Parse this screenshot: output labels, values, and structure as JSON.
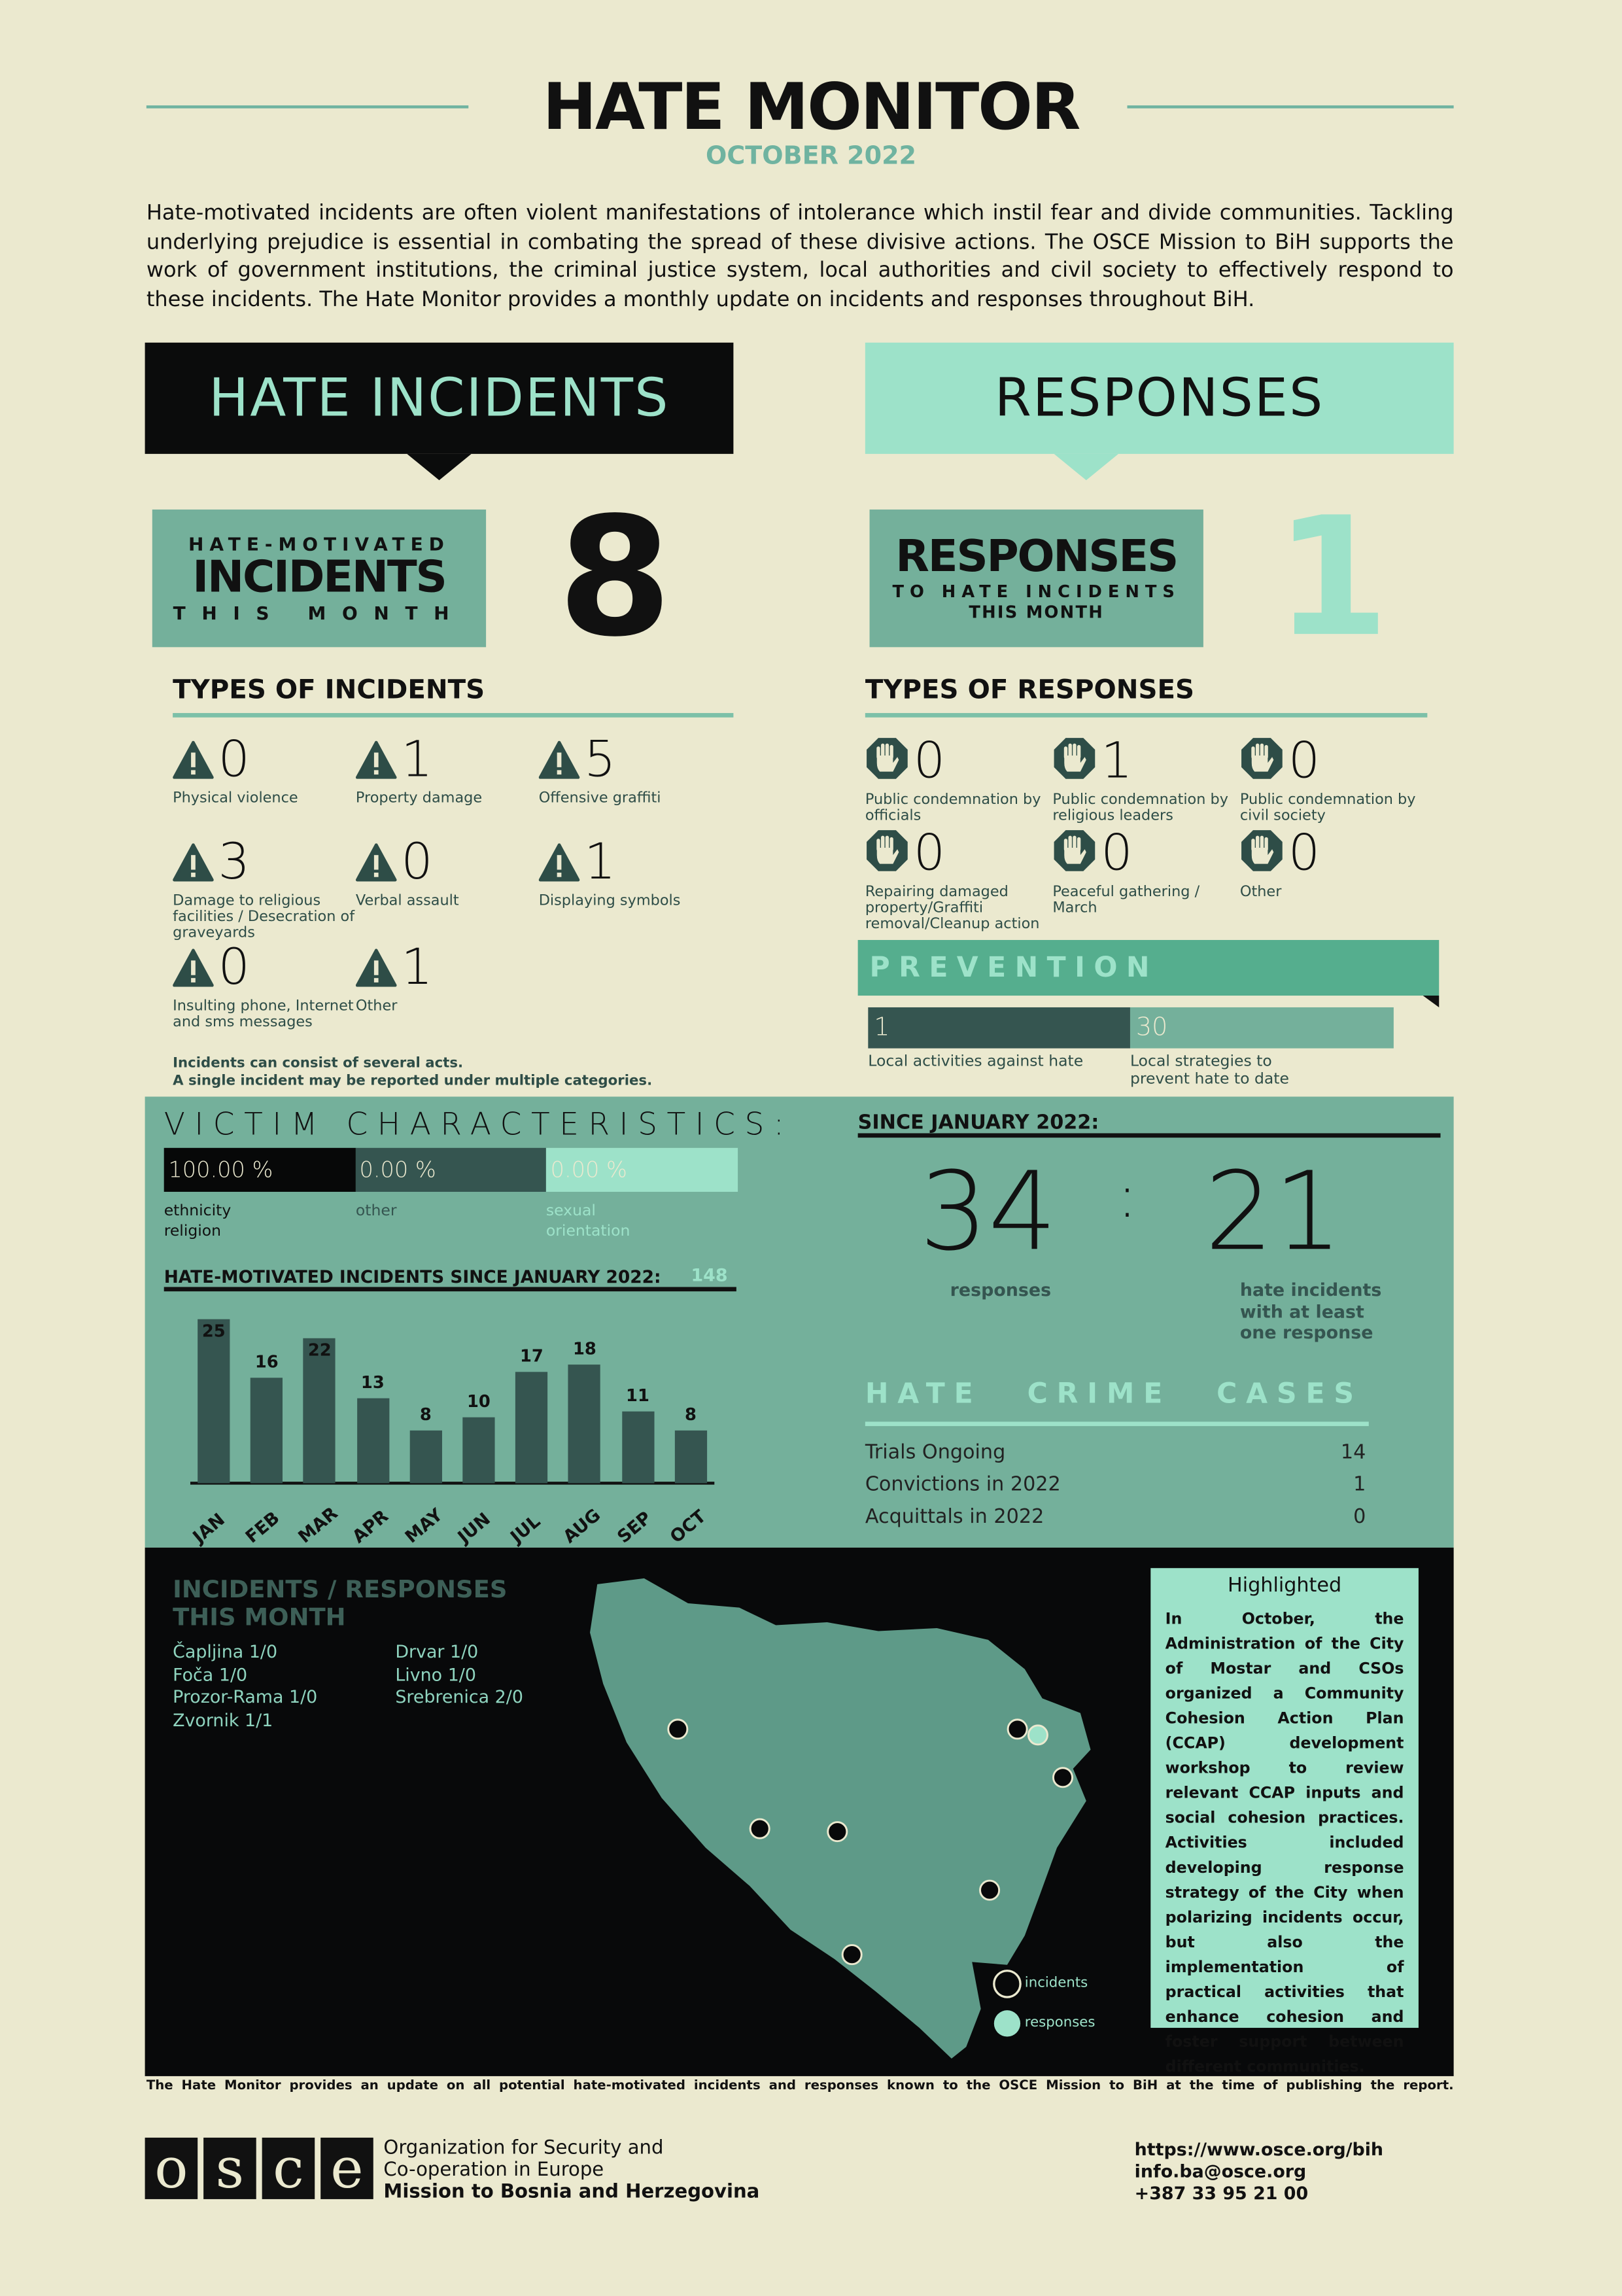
{
  "header": {
    "title": "HATE MONITOR",
    "subtitle": "OCTOBER 2022",
    "intro": "Hate-motivated incidents are often violent manifestations of intolerance which instil fear and divide communities. Tackling underlying prejudice is essential in combating the spread of these divisive actions. The OSCE Mission to BiH supports the work of government institutions, the criminal justice system, local authorities and civil society to effectively respond to these incidents. The Hate Monitor provides a monthly update on incidents and responses throughout BiH."
  },
  "incidents": {
    "banner": "HATE INCIDENTS",
    "label_top": "HATE-MOTIVATED",
    "label_main": "INCIDENTS",
    "label_bottom": "THIS MONTH",
    "count": "8",
    "types_heading": "TYPES OF INCIDENTS",
    "types": [
      {
        "value": "0",
        "label": "Physical violence"
      },
      {
        "value": "1",
        "label": "Property damage"
      },
      {
        "value": "5",
        "label": "Offensive graffiti"
      },
      {
        "value": "3",
        "label": "Damage to religious facilities / Desecration of graveyards"
      },
      {
        "value": "0",
        "label": "Verbal assault"
      },
      {
        "value": "1",
        "label": "Displaying symbols"
      },
      {
        "value": "0",
        "label": "Insulting phone, Internet and sms messages"
      },
      {
        "value": "1",
        "label": "Other"
      }
    ],
    "note1": "Incidents can consist of several acts.",
    "note2": "A single incident may be reported under multiple categories."
  },
  "responses": {
    "banner": "RESPONSES",
    "label_main": "RESPONSES",
    "label_mid": "TO HATE INCIDENTS",
    "label_bottom": "THIS MONTH",
    "count": "1",
    "types_heading": "TYPES OF RESPONSES",
    "types": [
      {
        "value": "0",
        "label": "Public condemnation by officials"
      },
      {
        "value": "1",
        "label": "Public condemnation by religious leaders"
      },
      {
        "value": "0",
        "label": "Public condemnation by civil society"
      },
      {
        "value": "0",
        "label": "Repairing damaged property/Graffiti removal/Cleanup action"
      },
      {
        "value": "0",
        "label": "Peaceful gathering / March"
      },
      {
        "value": "0",
        "label": "Other"
      }
    ]
  },
  "prevention": {
    "title": "PREVENTION",
    "activities_value": "1",
    "activities_label": "Local activities against hate",
    "strategies_value": "30",
    "strategies_label": "Local strategies to prevent hate to date"
  },
  "victims": {
    "title": "VICTIM CHARACTERISTICS:",
    "items": [
      {
        "value": "100.00 %",
        "label": "ethnicity religion"
      },
      {
        "value": "0.00 %",
        "label": "other"
      },
      {
        "value": "0.00 %",
        "label": "sexual orientation"
      }
    ]
  },
  "chart_data": {
    "type": "bar",
    "title": "HATE-MOTIVATED INCIDENTS SINCE JANUARY 2022:",
    "total": "148",
    "categories": [
      "JAN",
      "FEB",
      "MAR",
      "APR",
      "MAY",
      "JUN",
      "JUL",
      "AUG",
      "SEP",
      "OCT"
    ],
    "values": [
      25,
      16,
      22,
      13,
      8,
      10,
      17,
      18,
      11,
      8
    ],
    "ylim": [
      0,
      25
    ],
    "grid": false
  },
  "since": {
    "heading": "SINCE JANUARY 2022:",
    "responses": "34",
    "separator": ":",
    "incidents": "21",
    "responses_label": "responses",
    "incidents_label": "hate incidents with at least one response"
  },
  "hate_crime": {
    "title": "HATE CRIME CASES",
    "rows": [
      {
        "label": "Trials Ongoing",
        "value": "14"
      },
      {
        "label": "Convictions in 2022",
        "value": "1"
      },
      {
        "label": "Acquittals in 2022",
        "value": "0"
      }
    ]
  },
  "map": {
    "title1": "INCIDENTS / RESPONSES",
    "title2": "THIS MONTH",
    "cities": [
      {
        "name": "Čapljina",
        "value": "1/0"
      },
      {
        "name": "Foča",
        "value": "1/0"
      },
      {
        "name": "Prozor-Rama",
        "value": "1/0"
      },
      {
        "name": "Zvornik",
        "value": "1/1"
      },
      {
        "name": "Drvar",
        "value": "1/0"
      },
      {
        "name": "Livno",
        "value": "1/0"
      },
      {
        "name": "Srebrenica",
        "value": "2/0"
      }
    ],
    "legend_incidents": "incidents",
    "legend_responses": "responses"
  },
  "highlight": {
    "title": "Highlighted",
    "text": "In October, the Administration of the City of Mostar and CSOs organized a Community Cohesion Action Plan (CCAP) development workshop to review relevant CCAP inputs and social cohesion practices. Activities included developing response strategy of the City when polarizing incidents occur, but also the implementation of practical activities that enhance cohesion and foster support between different communities."
  },
  "footer": {
    "note": "The Hate Monitor provides an update on all potential hate-motivated incidents and responses known to the OSCE Mission to BiH at the time of publishing the report.",
    "logo": "OSCE",
    "org1": "Organization for Security and",
    "org2": "Co-operation in Europe",
    "org3": "Mission to Bosnia and Herzegovina",
    "url": "https://www.osce.org/bih",
    "email": "info.ba@osce.org",
    "phone": "+387 33 95 21 00"
  },
  "colors": {
    "background": "#ebe9cf",
    "teal": "#74b09b",
    "mint": "#9de2c9",
    "dark": "#355550",
    "prevention": "#55ae8e"
  }
}
